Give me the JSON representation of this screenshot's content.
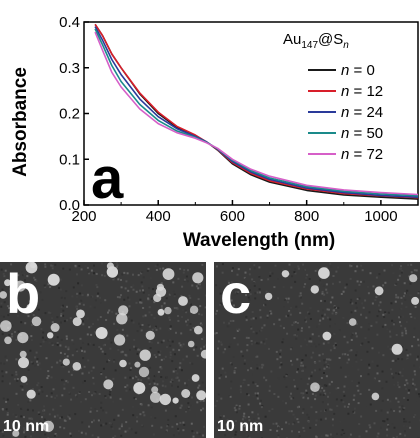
{
  "chart_data": {
    "type": "line",
    "panel_label": "a",
    "ylabel": "Absorbance",
    "xlabel": "Wavelength (nm)",
    "xlim": [
      200,
      1100
    ],
    "ylim": [
      0.0,
      0.4
    ],
    "xticks": [
      "200",
      "400",
      "600",
      "800",
      "1000"
    ],
    "yticks": [
      "0.0",
      "0.1",
      "0.2",
      "0.3",
      "0.4"
    ],
    "legend_title": "Au147@Sn",
    "legend_position": "top-right",
    "series": [
      {
        "name": "n = 0",
        "color": "#1a1a1a",
        "x": [
          230,
          250,
          275,
          300,
          350,
          400,
          450,
          500,
          530,
          560,
          600,
          650,
          700,
          800,
          900,
          1000,
          1100
        ],
        "y": [
          0.395,
          0.37,
          0.33,
          0.3,
          0.243,
          0.2,
          0.17,
          0.152,
          0.138,
          0.12,
          0.09,
          0.066,
          0.05,
          0.032,
          0.022,
          0.017,
          0.013
        ]
      },
      {
        "name": "n = 12",
        "color": "#d81e2a",
        "x": [
          230,
          250,
          275,
          300,
          350,
          400,
          450,
          500,
          530,
          560,
          600,
          650,
          700,
          800,
          900,
          1000,
          1100
        ],
        "y": [
          0.395,
          0.37,
          0.33,
          0.3,
          0.245,
          0.203,
          0.172,
          0.153,
          0.138,
          0.121,
          0.093,
          0.069,
          0.053,
          0.035,
          0.025,
          0.02,
          0.016
        ]
      },
      {
        "name": "n = 24",
        "color": "#2a3a9a",
        "x": [
          230,
          250,
          275,
          300,
          350,
          400,
          450,
          500,
          530,
          560,
          600,
          650,
          700,
          800,
          900,
          1000,
          1100
        ],
        "y": [
          0.39,
          0.36,
          0.318,
          0.285,
          0.232,
          0.193,
          0.167,
          0.15,
          0.138,
          0.122,
          0.095,
          0.072,
          0.056,
          0.037,
          0.027,
          0.021,
          0.017
        ]
      },
      {
        "name": "n = 50",
        "color": "#1a8a8a",
        "x": [
          230,
          250,
          275,
          300,
          350,
          400,
          450,
          500,
          530,
          560,
          600,
          650,
          700,
          800,
          900,
          1000,
          1100
        ],
        "y": [
          0.385,
          0.35,
          0.305,
          0.27,
          0.22,
          0.185,
          0.162,
          0.148,
          0.137,
          0.123,
          0.098,
          0.075,
          0.059,
          0.04,
          0.03,
          0.024,
          0.02
        ]
      },
      {
        "name": "n = 72",
        "color": "#d65fc8",
        "x": [
          230,
          250,
          275,
          300,
          350,
          400,
          450,
          500,
          530,
          560,
          600,
          650,
          700,
          800,
          900,
          1000,
          1100
        ],
        "y": [
          0.378,
          0.338,
          0.29,
          0.258,
          0.21,
          0.178,
          0.158,
          0.146,
          0.136,
          0.124,
          0.1,
          0.078,
          0.063,
          0.043,
          0.033,
          0.027,
          0.023
        ]
      }
    ]
  },
  "micrographs": [
    {
      "panel_label": "b",
      "scale_label": "10 nm"
    },
    {
      "panel_label": "c",
      "scale_label": "10 nm"
    }
  ]
}
